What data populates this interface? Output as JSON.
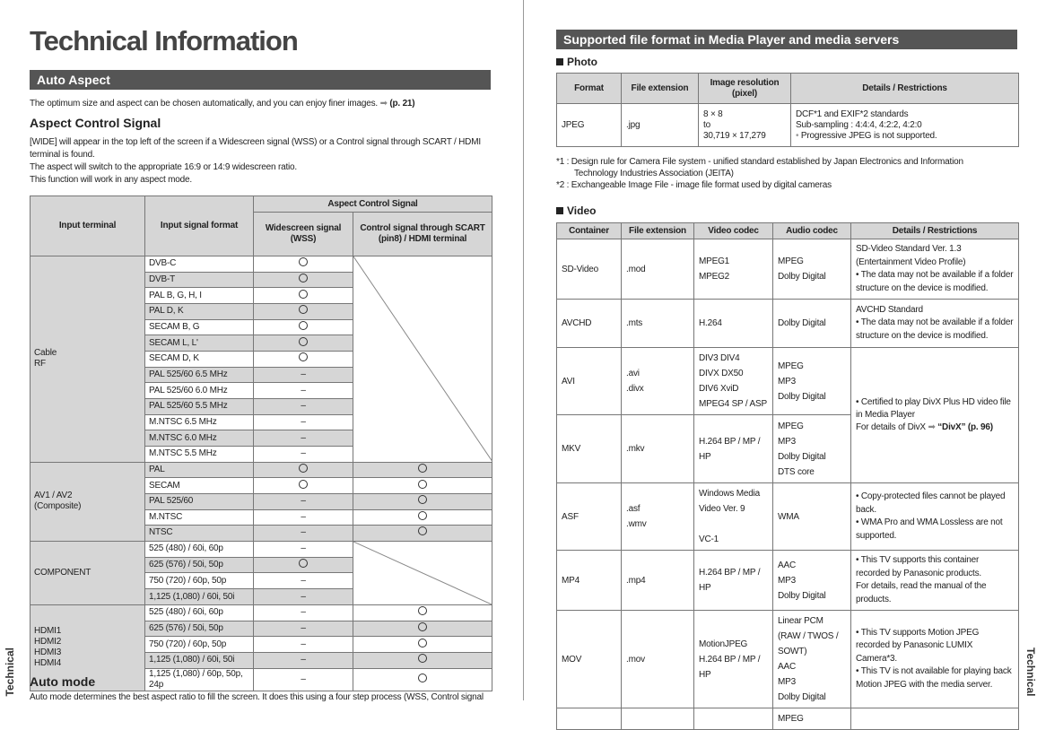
{
  "left": {
    "title": "Technical Information",
    "section_bar": "Auto Aspect",
    "intro": "The optimum size and aspect can be chosen automatically, and you can enjoy finer images.",
    "intro_ref": "(p. 21)",
    "subheading": "Aspect Control Signal",
    "para": [
      "[WIDE] will appear in the top left of the screen if a Widescreen signal (WSS) or a Control signal through SCART / HDMI terminal is found.",
      "The aspect will switch to the appropriate 16:9 or 14:9 widescreen ratio.",
      "This function will work in any aspect mode."
    ],
    "table": {
      "headers": {
        "input_terminal": "Input terminal",
        "input_format": "Input signal format",
        "group": "Aspect Control Signal",
        "wss": "Widescreen signal (WSS)",
        "control": "Control signal through SCART (pin8) / HDMI terminal"
      },
      "groups": [
        {
          "terminal": "Cable\nRF",
          "control_na": true,
          "rows": [
            {
              "format": "DVB-C",
              "wss": "circle"
            },
            {
              "format": "DVB-T",
              "wss": "circle"
            },
            {
              "format": "PAL B, G, H, I",
              "wss": "circle"
            },
            {
              "format": "PAL D, K",
              "wss": "circle"
            },
            {
              "format": "SECAM B, G",
              "wss": "circle"
            },
            {
              "format": "SECAM L, L'",
              "wss": "circle"
            },
            {
              "format": "SECAM D, K",
              "wss": "circle"
            },
            {
              "format": "PAL 525/60 6.5 MHz",
              "wss": "–"
            },
            {
              "format": "PAL 525/60 6.0 MHz",
              "wss": "–"
            },
            {
              "format": "PAL 525/60 5.5 MHz",
              "wss": "–"
            },
            {
              "format": "M.NTSC 6.5 MHz",
              "wss": "–"
            },
            {
              "format": "M.NTSC 6.0 MHz",
              "wss": "–"
            },
            {
              "format": "M.NTSC 5.5 MHz",
              "wss": "–"
            }
          ]
        },
        {
          "terminal": "AV1 / AV2\n(Composite)",
          "control_na": false,
          "rows": [
            {
              "format": "PAL",
              "wss": "circle",
              "control": "circle"
            },
            {
              "format": "SECAM",
              "wss": "circle",
              "control": "circle"
            },
            {
              "format": "PAL 525/60",
              "wss": "–",
              "control": "circle"
            },
            {
              "format": "M.NTSC",
              "wss": "–",
              "control": "circle"
            },
            {
              "format": "NTSC",
              "wss": "–",
              "control": "circle"
            }
          ]
        },
        {
          "terminal": "COMPONENT",
          "control_na": true,
          "rows": [
            {
              "format": "525 (480) / 60i, 60p",
              "wss": "–"
            },
            {
              "format": "625 (576) / 50i, 50p",
              "wss": "circle"
            },
            {
              "format": "750 (720) / 60p, 50p",
              "wss": "–"
            },
            {
              "format": "1,125 (1,080) / 60i, 50i",
              "wss": "–"
            }
          ]
        },
        {
          "terminal": "HDMI1\nHDMI2\nHDMI3\nHDMI4",
          "control_na": false,
          "rows": [
            {
              "format": "525 (480) / 60i, 60p",
              "wss": "–",
              "control": "circle"
            },
            {
              "format": "625 (576) / 50i, 50p",
              "wss": "–",
              "control": "circle"
            },
            {
              "format": "750 (720) / 60p, 50p",
              "wss": "–",
              "control": "circle"
            },
            {
              "format": "1,125 (1,080) / 60i, 50i",
              "wss": "–",
              "control": "circle"
            },
            {
              "format": "1,125 (1,080) / 60p, 50p, 24p",
              "wss": "–",
              "control": "circle"
            }
          ]
        }
      ]
    },
    "auto_mode_heading": "Auto mode",
    "auto_mode_text": "Auto mode determines the best aspect ratio to fill the screen. It does this using a four step process (WSS, Control signal",
    "side_tab": "Technical"
  },
  "right": {
    "section_bar": "Supported file format in Media Player and media servers",
    "photo_heading": "Photo",
    "photo_table": {
      "headers": [
        "Format",
        "File extension",
        "Image resolution (pixel)",
        "Details / Restrictions"
      ],
      "row": {
        "format": "JPEG",
        "ext": ".jpg",
        "res": [
          "8 × 8",
          "to",
          "30,719 × 17,279"
        ],
        "details": [
          "DCF*1 and EXIF*2 standards",
          "Sub-sampling : 4:4:4, 4:2:2, 4:2:0",
          "Progressive JPEG is not supported."
        ]
      }
    },
    "footnotes": [
      "*1 : Design rule for Camera File system - unified standard established by Japan Electronics and Information Technology Industries Association (JEITA)",
      "*2 : Exchangeable Image File - image file format used by digital cameras"
    ],
    "video_heading": "Video",
    "video_table": {
      "headers": [
        "Container",
        "File extension",
        "Video codec",
        "Audio codec",
        "Details / Restrictions"
      ],
      "rows": [
        {
          "container": "SD-Video",
          "ext": ".mod",
          "video": "MPEG1\nMPEG2",
          "audio": "MPEG\nDolby Digital",
          "details": "SD-Video Standard Ver. 1.3\n(Entertainment Video Profile)\n• The data may not be available if a folder structure on the device is modified."
        },
        {
          "container": "AVCHD",
          "ext": ".mts",
          "video": "H.264",
          "audio": "Dolby Digital",
          "details": "AVCHD Standard\n• The data may not be available if a folder structure on the device is modified."
        },
        {
          "container": "AVI",
          "ext": ".avi\n.divx",
          "video": "DIV3        DIV4\nDIVX        DX50\nDIV6        XviD\nMPEG4 SP / ASP",
          "audio": "MPEG\nMP3\nDolby Digital"
        },
        {
          "container": "MKV",
          "ext": ".mkv",
          "video": "H.264 BP / MP / HP",
          "audio": "MPEG\nMP3\nDolby Digital\nDTS core"
        },
        {
          "container": "ASF",
          "ext": ".asf\n.wmv",
          "video": "Windows Media Video Ver. 9\n\nVC-1",
          "audio": "WMA",
          "details": "• Copy-protected files cannot be played back.\n• WMA Pro and WMA Lossless are not supported."
        },
        {
          "container": "MP4",
          "ext": ".mp4",
          "video": "H.264 BP / MP / HP",
          "audio": "AAC\nMP3\nDolby Digital",
          "details": "• This TV supports this container recorded by Panasonic products.\nFor details, read the manual of the products."
        },
        {
          "container": "MOV",
          "ext": ".mov",
          "video": "MotionJPEG\nH.264 BP / MP / HP",
          "audio": "Linear PCM (RAW / TWOS / SOWT)\nAAC\nMP3\nDolby Digital",
          "details": "• This TV supports Motion JPEG recorded by Panasonic LUMIX Camera*3.\n• This TV is not available for playing back Motion JPEG with the media server."
        },
        {
          "container": "",
          "ext": "",
          "video": "",
          "audio": "MPEG",
          "details": ""
        }
      ],
      "divx_details": "• Certified to play DivX Plus HD video file in Media Player\nFor details of DivX",
      "divx_ref": "“DivX” (p. 96)"
    },
    "side_tab": "Technical"
  }
}
